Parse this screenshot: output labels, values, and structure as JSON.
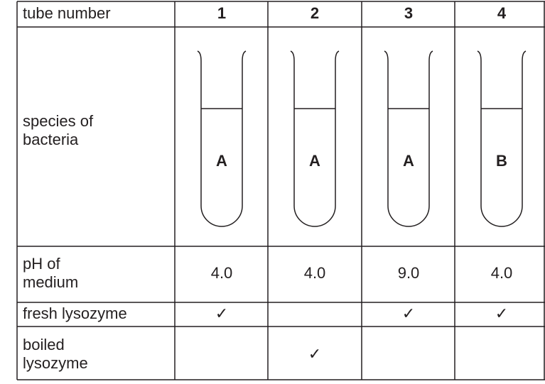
{
  "table": {
    "header": {
      "label": "tube number",
      "tubes": [
        "1",
        "2",
        "3",
        "4"
      ]
    },
    "species": {
      "label": [
        "species of",
        "bacteria"
      ],
      "values": [
        "A",
        "A",
        "A",
        "B"
      ]
    },
    "ph": {
      "label": [
        "pH of",
        "medium"
      ],
      "values": [
        "4.0",
        "4.0",
        "9.0",
        "4.0"
      ]
    },
    "fresh": {
      "label": [
        "fresh lysozyme"
      ],
      "values": [
        "✓",
        null,
        "✓",
        "✓"
      ]
    },
    "boiled": {
      "label": [
        "boiled",
        "lysozyme"
      ],
      "values": [
        null,
        "✓",
        null,
        null
      ]
    }
  }
}
